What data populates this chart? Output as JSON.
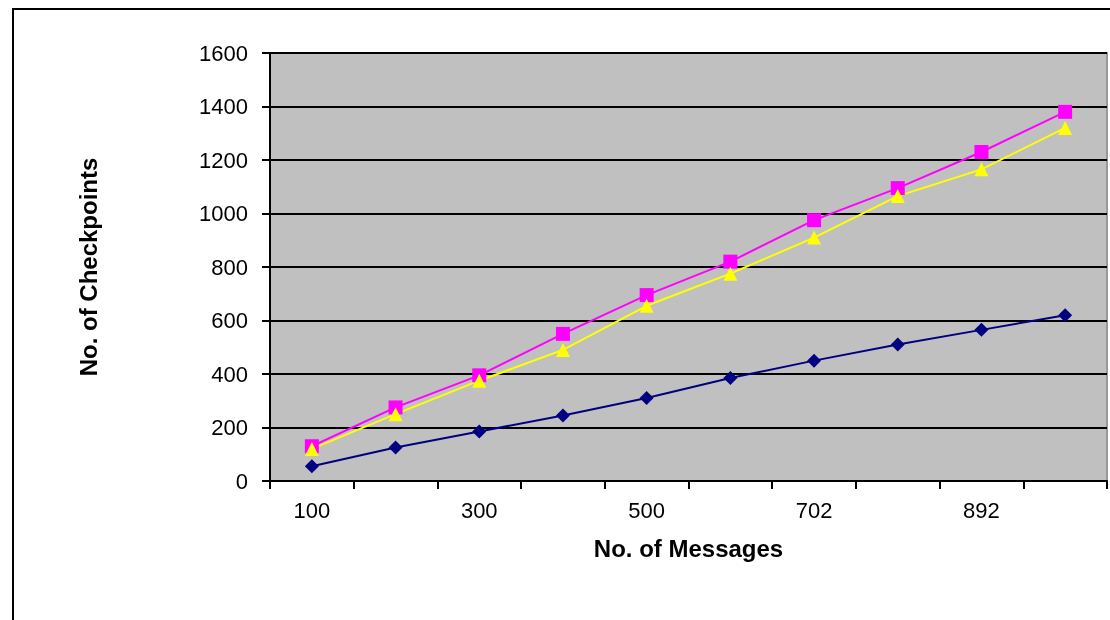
{
  "chart_data": {
    "type": "line",
    "xlabel": "No. of Messages",
    "ylabel": "No. of Checkpoints",
    "categories": [
      "100",
      null,
      "300",
      null,
      "500",
      null,
      "702",
      null,
      "892",
      null
    ],
    "series": [
      {
        "color": "#000080",
        "marker": "diamond",
        "values": [
          55,
          125,
          185,
          245,
          310,
          385,
          450,
          510,
          565,
          620
        ]
      },
      {
        "color": "#ff00ff",
        "marker": "square",
        "values": [
          130,
          275,
          395,
          550,
          695,
          820,
          975,
          1095,
          1230,
          1380
        ]
      },
      {
        "color": "#ffff00",
        "marker": "triangle",
        "values": [
          120,
          250,
          375,
          490,
          655,
          775,
          910,
          1065,
          1165,
          1320
        ]
      }
    ],
    "ylim": [
      0,
      1600
    ],
    "yticks": [
      0,
      200,
      400,
      600,
      800,
      1000,
      1200,
      1400,
      1600
    ],
    "grid": "y"
  }
}
